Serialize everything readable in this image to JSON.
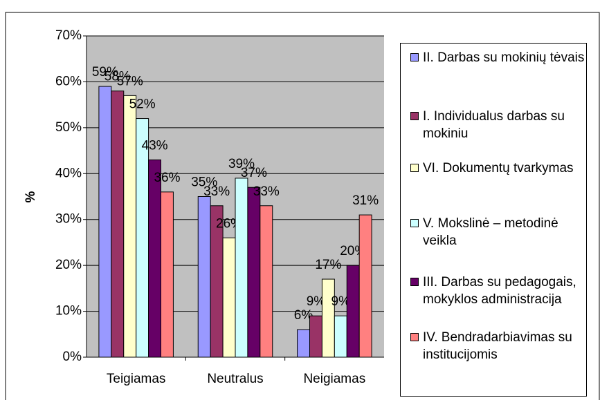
{
  "chart_data": {
    "type": "bar",
    "y_label": "%",
    "categories": [
      "Teigiamas",
      "Neutralus",
      "Neigiamas"
    ],
    "series": [
      {
        "name": "II. Darbas su mokinių tėvais",
        "color": "#9999ff",
        "values": [
          59,
          35,
          6
        ],
        "value_labels": [
          "59%",
          "35%",
          "6%"
        ]
      },
      {
        "name": "I. Individualus darbas su mokiniu",
        "color": "#993366",
        "values": [
          58,
          33,
          9
        ],
        "value_labels": [
          "58%",
          "33%",
          "9%"
        ]
      },
      {
        "name": "VI. Dokumentų tvarkymas",
        "color": "#ffffcc",
        "values": [
          57,
          26,
          17
        ],
        "value_labels": [
          "57%",
          "26%",
          "17%"
        ]
      },
      {
        "name": "V. Mokslinė – metodinė veikla",
        "color": "#ccffff",
        "values": [
          52,
          39,
          9
        ],
        "value_labels": [
          "52%",
          "39%",
          "9%"
        ]
      },
      {
        "name": "III. Darbas su pedagogais, mokyklos administracija",
        "color": "#660066",
        "values": [
          43,
          37,
          20
        ],
        "value_labels": [
          "43%",
          "37%",
          "20%"
        ]
      },
      {
        "name": "IV. Bendradarbiavimas su institucijomis",
        "color": "#ff8080",
        "values": [
          36,
          33,
          31
        ],
        "value_labels": [
          "36%",
          "33%",
          "31%"
        ]
      }
    ],
    "ylim": [
      0,
      70
    ],
    "yticks": [
      {
        "value": 0,
        "label": "0%"
      },
      {
        "value": 10,
        "label": "10%"
      },
      {
        "value": 20,
        "label": "20%"
      },
      {
        "value": 30,
        "label": "30%"
      },
      {
        "value": 40,
        "label": "40%"
      },
      {
        "value": 50,
        "label": "50%"
      },
      {
        "value": 60,
        "label": "60%"
      },
      {
        "value": 70,
        "label": "70%"
      }
    ],
    "grid": true,
    "legend": "right",
    "plot_background": "#c0c0c0"
  }
}
